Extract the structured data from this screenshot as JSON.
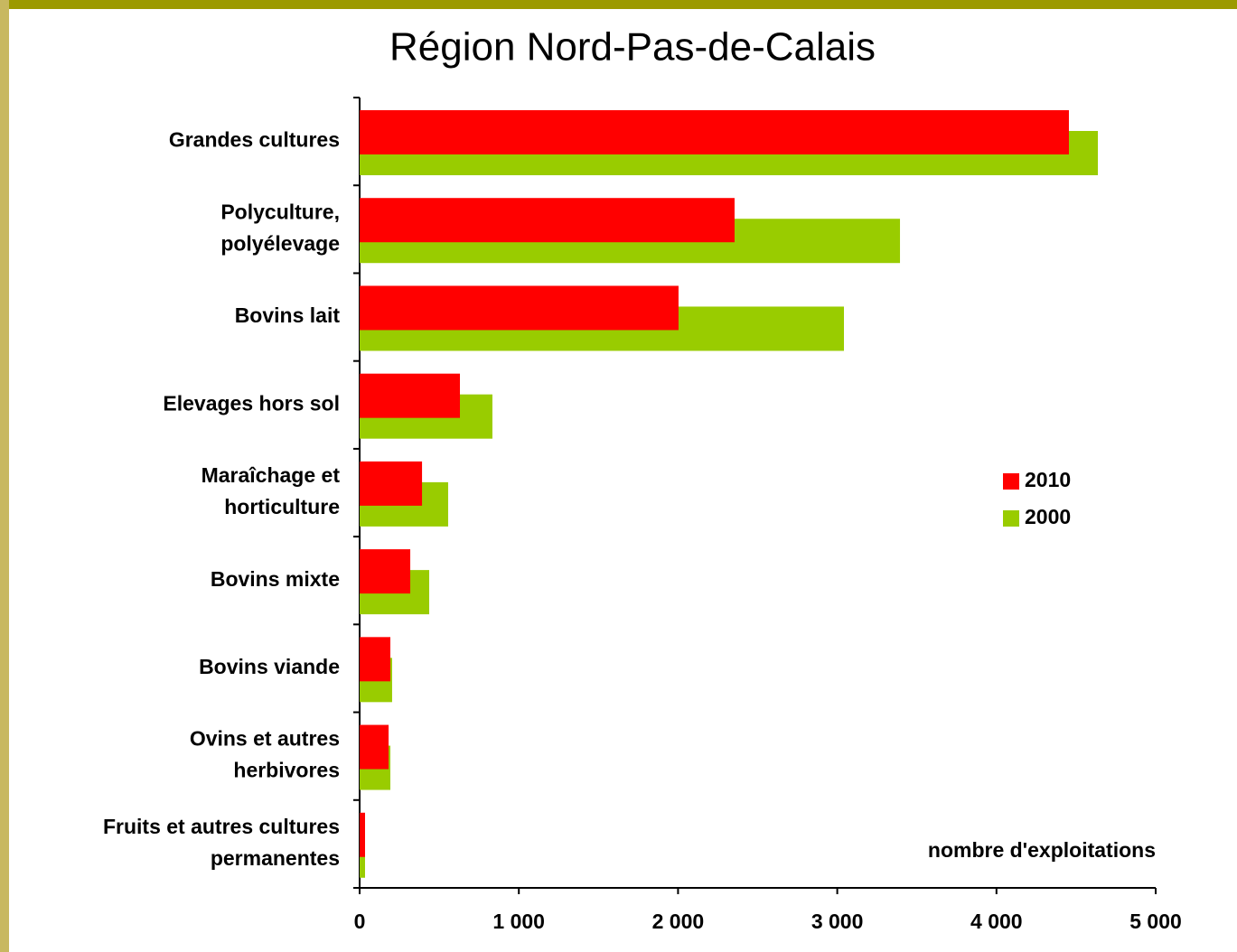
{
  "chart_data": {
    "type": "hbar",
    "title": "Région Nord-Pas-de-Calais",
    "x_label": "nombre d'exploitations",
    "categories": [
      "Grandes cultures",
      "Polyculture,\npolyélevage",
      "Bovins lait",
      "Elevages hors sol",
      "Maraîchage et\nhorticulture",
      "Bovins mixte",
      "Bovins viande",
      "Ovins et autres\nherbivores",
      "Fruits et autres cultures\npermanentes"
    ],
    "series": [
      {
        "name": "2010",
        "color": "#ff0000",
        "values": [
          4455,
          2355,
          2003,
          630,
          392,
          318,
          193,
          182,
          34
        ]
      },
      {
        "name": "2000",
        "color": "#99cc00",
        "values": [
          4637,
          3394,
          3042,
          834,
          556,
          437,
          204,
          193,
          34
        ]
      }
    ],
    "xlim": [
      0,
      5000
    ],
    "xticks": [
      0,
      {
        "value": 1000,
        "label": "1 000"
      },
      {
        "value": 2000,
        "label": "2 000"
      },
      {
        "value": 3000,
        "label": "3 000"
      },
      {
        "value": 4000,
        "label": "4 000"
      },
      {
        "value": 5000,
        "label": "5 000"
      }
    ],
    "legend": "right"
  }
}
